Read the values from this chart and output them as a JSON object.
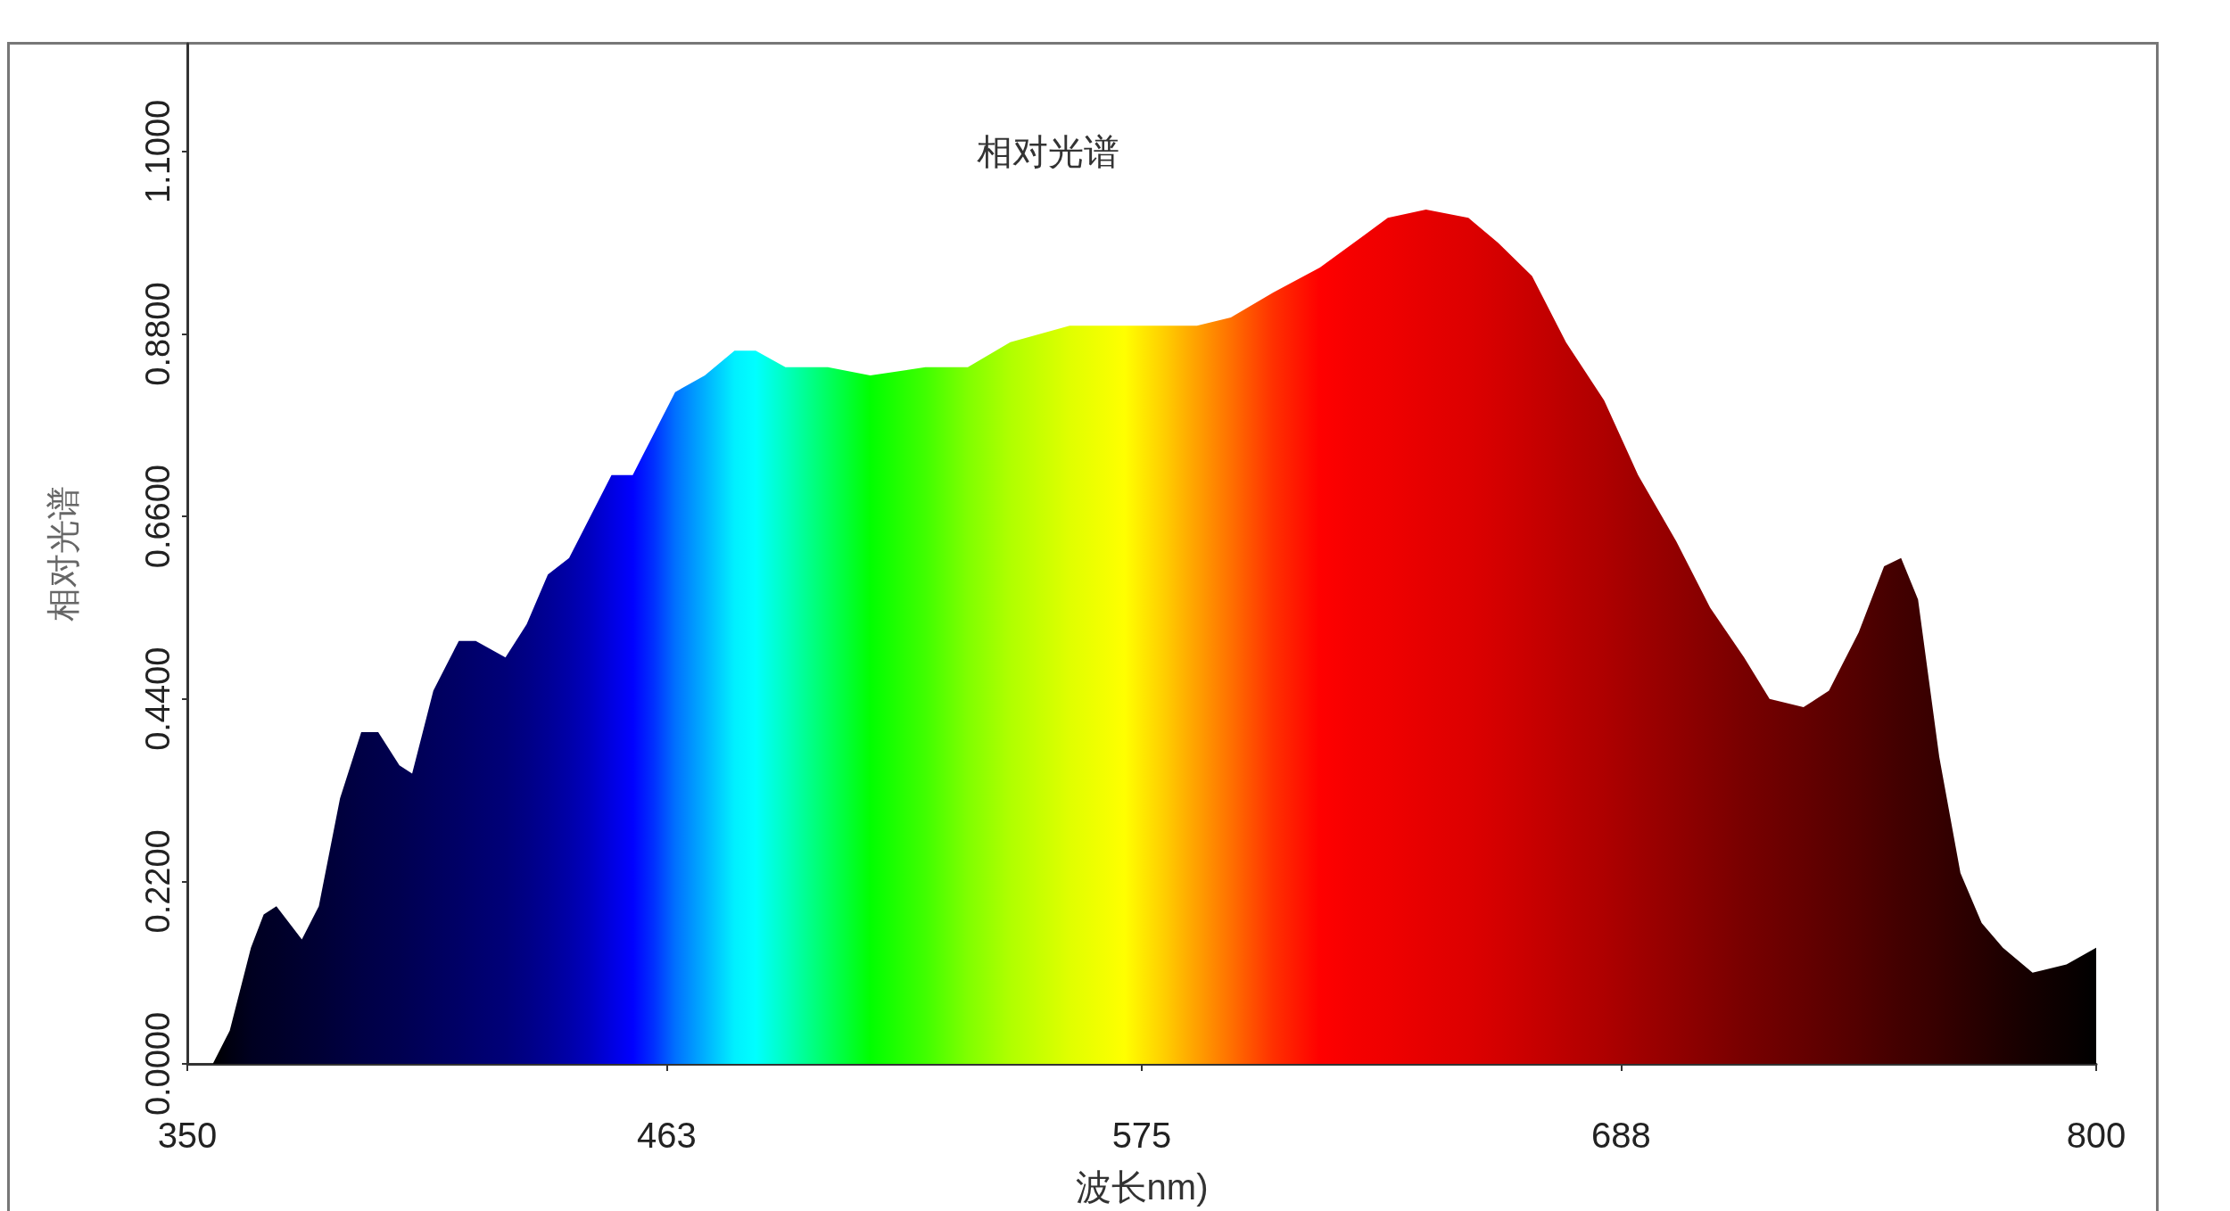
{
  "chart_data": {
    "type": "area",
    "title": "相对光谱",
    "xlabel": "波长nm)",
    "ylabel": "相对光谱",
    "x": [
      356,
      360,
      365,
      368,
      371,
      377,
      381,
      386,
      391,
      395,
      400,
      403,
      408,
      414,
      418,
      425,
      430,
      435,
      440,
      445,
      450,
      455,
      460,
      465,
      472,
      479,
      484,
      491,
      501,
      511,
      524,
      534,
      544,
      558,
      571,
      580,
      588,
      596,
      606,
      617,
      625,
      633,
      642,
      652,
      659,
      667,
      675,
      684,
      692,
      701,
      709,
      717,
      723,
      731,
      737,
      744,
      750,
      754,
      758,
      763,
      768,
      773,
      778,
      785,
      793,
      800
    ],
    "series": [
      {
        "values": [
          0,
          0.04,
          0.14,
          0.18,
          0.19,
          0.15,
          0.19,
          0.32,
          0.4,
          0.4,
          0.36,
          0.35,
          0.45,
          0.51,
          0.51,
          0.49,
          0.53,
          0.59,
          0.61,
          0.66,
          0.71,
          0.71,
          0.76,
          0.81,
          0.83,
          0.86,
          0.86,
          0.84,
          0.84,
          0.83,
          0.84,
          0.84,
          0.87,
          0.89,
          0.89,
          0.89,
          0.89,
          0.9,
          0.93,
          0.96,
          0.99,
          1.02,
          1.03,
          1.02,
          0.99,
          0.95,
          0.87,
          0.8,
          0.71,
          0.63,
          0.55,
          0.49,
          0.44,
          0.43,
          0.45,
          0.52,
          0.6,
          0.61,
          0.56,
          0.37,
          0.23,
          0.17,
          0.14,
          0.11,
          0.12,
          0.14
        ],
        "colors": [
          "#000000",
          "#000010",
          "#000020",
          "#000025",
          "#000028",
          "#000030",
          "#000035",
          "#00003d",
          "#000045",
          "#00004a",
          "#000050",
          "#000055",
          "#00005d",
          "#000066",
          "#00006d",
          "#000078",
          "#000085",
          "#000095",
          "#0000a8",
          "#0000c0",
          "#0000e0",
          "#0000ff",
          "#0030ff",
          "#0070ff",
          "#00b0ff",
          "#00f0ff",
          "#00ffff",
          "#00ffc0",
          "#00ff60",
          "#00ff00",
          "#40ff00",
          "#80ff00",
          "#b0ff00",
          "#e0ff00",
          "#ffff00",
          "#ffd000",
          "#ffa000",
          "#ff7000",
          "#ff3000",
          "#ff0000",
          "#f50000",
          "#ef0000",
          "#e60000",
          "#dd0000",
          "#d40000",
          "#c80000",
          "#bb0000",
          "#ae0000",
          "#a00000",
          "#920000",
          "#850000",
          "#780000",
          "#700000",
          "#650000",
          "#5c0000",
          "#520000",
          "#480000",
          "#420000",
          "#3d0000",
          "#360000",
          "#2e0000",
          "#260000",
          "#1e0000",
          "#140000",
          "#0a0000",
          "#000000"
        ]
      }
    ],
    "xlim": [
      350,
      800
    ],
    "xticks": [
      350,
      463,
      575,
      688,
      800
    ],
    "ylim": [
      0,
      1.23
    ],
    "yticks": [
      {
        "value": 0,
        "label": "0.0000"
      },
      {
        "value": 0.22,
        "label": "0.2200"
      },
      {
        "value": 0.44,
        "label": "0.4400"
      },
      {
        "value": 0.66,
        "label": "0.6600"
      },
      {
        "value": 0.88,
        "label": "0.8800"
      },
      {
        "value": 1.1,
        "label": "1.1000"
      }
    ],
    "grid": false,
    "marker": "none"
  }
}
